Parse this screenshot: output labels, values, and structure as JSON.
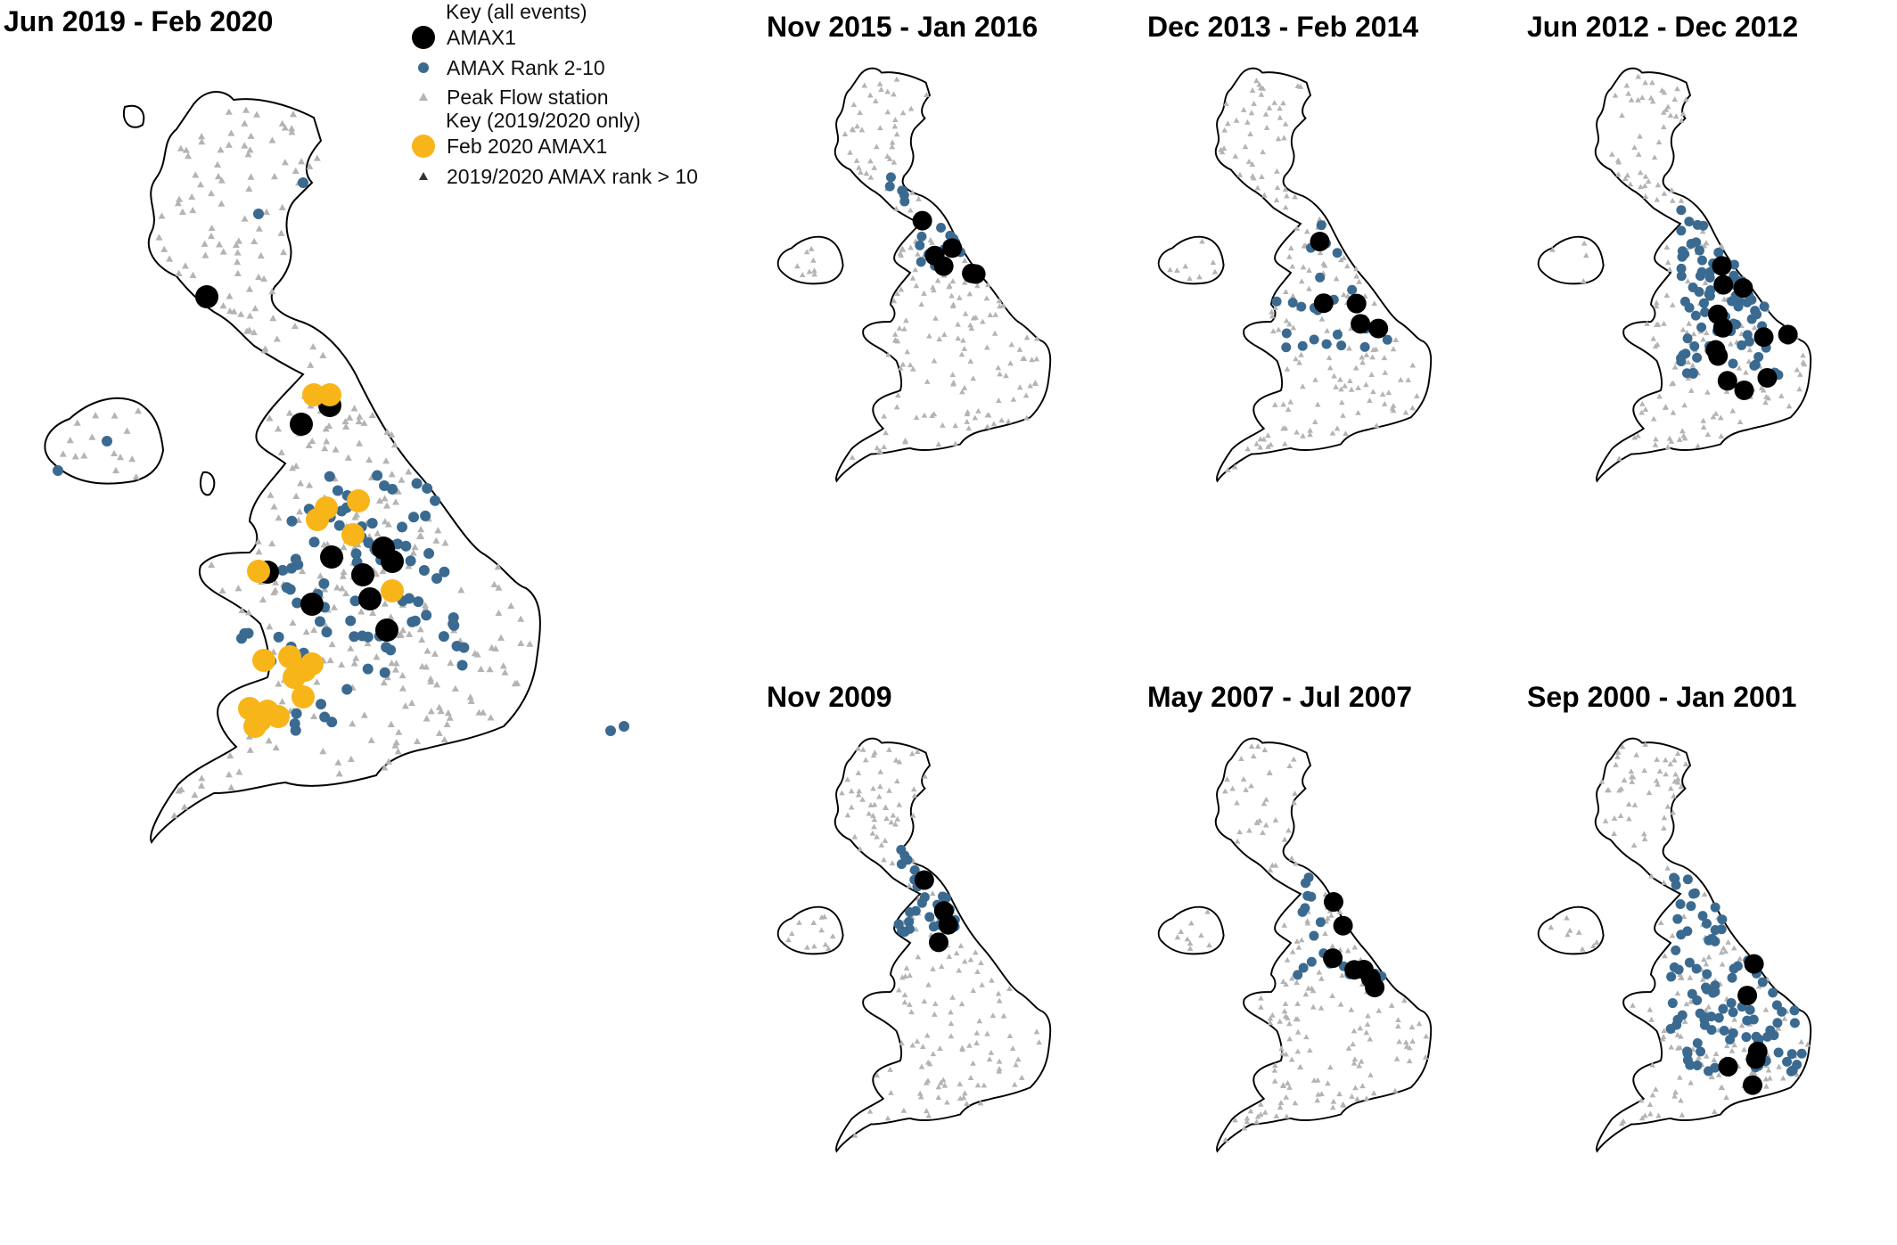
{
  "main_panel": {
    "title": "Jun 2019 - Feb 2020"
  },
  "legend": {
    "heading_all": "Key (all events)",
    "amax1": "AMAX1",
    "rank": "AMAX Rank 2-10",
    "station": "Peak Flow station",
    "heading_2020": "Key (2019/2020 only)",
    "feb2020": "Feb 2020 AMAX1",
    "rank_gt10": "2019/2020 AMAX rank > 10"
  },
  "panels": [
    {
      "title": "Nov 2015 - Jan 2016"
    },
    {
      "title": "Dec 2013 - Feb 2014"
    },
    {
      "title": "Jun 2012 - Dec 2012"
    },
    {
      "title": "Nov 2009"
    },
    {
      "title": "May 2007 - Jul 2007"
    },
    {
      "title": "Sep 2000 - Jan 2001"
    }
  ],
  "colors": {
    "amax1": "#000000",
    "rank": "#3b6a91",
    "station": "#b4b4b4",
    "feb2020": "#f7b519",
    "rank_gt10": "#333333",
    "outline": "#000000"
  },
  "icons": {
    "amax1": "large-black-circle-icon",
    "rank": "blue-circle-icon",
    "station": "grey-triangle-icon",
    "feb2020": "orange-circle-icon",
    "rank_gt10": "dark-triangle-icon"
  }
}
